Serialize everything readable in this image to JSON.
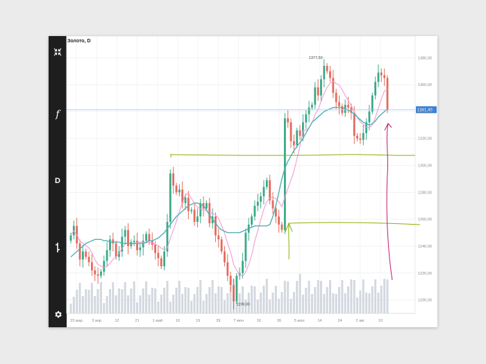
{
  "header": {
    "title": "Золото, D"
  },
  "toolbar": {
    "icons": [
      {
        "name": "collapse-icon"
      },
      {
        "name": "function-icon",
        "label": "f"
      },
      {
        "name": "interval-button",
        "label": "D"
      },
      {
        "name": "candle-style-icon"
      },
      {
        "name": "settings-icon"
      }
    ]
  },
  "price_tag": {
    "value": "1341,40",
    "color": "#3d83d6"
  },
  "colors": {
    "up": "#3aa888",
    "down": "#e36a5c",
    "ma_fast": "#f39ad6",
    "ma_slow": "#4fb0b3",
    "volume": "#d3d8e0",
    "annotation_green": "#8ab000",
    "annotation_magenta": "#c0176e"
  },
  "annotations": {
    "high_label": "1377,50",
    "low_label": "1199,00"
  },
  "chart_data": {
    "type": "line",
    "title": "Золото, D",
    "ylim": [
      1190,
      1392
    ],
    "y_ticks": [
      "1200,00",
      "1220,00",
      "1240,00",
      "1260,00",
      "1280,00",
      "1300,00",
      "1320,00",
      "1340,00",
      "1360,00",
      "1380,00"
    ],
    "x_ticks": [
      "23 мар",
      "3 апр",
      "12",
      "21",
      "1 май",
      "10",
      "19",
      "29",
      "7 июн",
      "16",
      "26",
      "5 июл",
      "14",
      "24",
      "2 авг",
      "10"
    ],
    "last_price": 1341.4,
    "series": [
      {
        "name": "",
        "values": [
          1248,
          1255,
          1242,
          1230,
          1236,
          1232,
          1228,
          1222,
          1219,
          1218,
          1221,
          1229,
          1237,
          1245,
          1242,
          1232,
          1236,
          1247,
          1252,
          1240,
          1243,
          1244,
          1237,
          1239,
          1244,
          1249,
          1244,
          1241,
          1235,
          1231,
          1225,
          1236,
          1258,
          1294,
          1285,
          1280,
          1282,
          1272,
          1276,
          1266,
          1267,
          1258,
          1262,
          1272,
          1268,
          1272,
          1257,
          1262,
          1248,
          1245,
          1236,
          1228,
          1218,
          1211,
          1199,
          1218,
          1220,
          1229,
          1250,
          1256,
          1262,
          1270,
          1273,
          1277,
          1284,
          1289,
          1274,
          1268,
          1262,
          1256,
          1252,
          1335,
          1332,
          1318,
          1315,
          1326,
          1322,
          1332,
          1338,
          1343,
          1345,
          1358,
          1352,
          1364,
          1374,
          1370,
          1365,
          1354,
          1347,
          1344,
          1339,
          1345,
          1343,
          1339,
          1322,
          1320,
          1319,
          1324,
          1332,
          1340,
          1352,
          1362,
          1369,
          1367,
          1365,
          1341
        ]
      },
      {
        "name": "",
        "values": [
          1232,
          1234,
          1236,
          1238,
          1240,
          1242,
          1243,
          1244,
          1245,
          1245,
          1245,
          1244,
          1244,
          1243,
          1243,
          1243,
          1243,
          1242,
          1242,
          1242,
          1242,
          1242,
          1242,
          1242,
          1242,
          1243,
          1244,
          1244,
          1245,
          1246,
          1248,
          1250,
          1253,
          1256,
          1259,
          1262,
          1264,
          1266,
          1268,
          1270,
          1271,
          1272,
          1272,
          1271,
          1270,
          1267,
          1263,
          1260,
          1257,
          1254,
          1252,
          1251,
          1250,
          1250,
          1250,
          1250,
          1250,
          1251,
          1252,
          1253,
          1254,
          1255,
          1255,
          1255,
          1255,
          1255,
          1256,
          1262,
          1270,
          1280,
          1290,
          1298,
          1303,
          1307,
          1311,
          1314,
          1317,
          1320,
          1324,
          1328,
          1332,
          1334,
          1336,
          1338,
          1340,
          1341,
          1342,
          1343,
          1343,
          1343,
          1343,
          1342,
          1341,
          1340,
          1338,
          1336,
          1334,
          1332,
          1331,
          1330,
          1331,
          1333,
          1336,
          1338,
          1340,
          1342
        ]
      }
    ]
  }
}
